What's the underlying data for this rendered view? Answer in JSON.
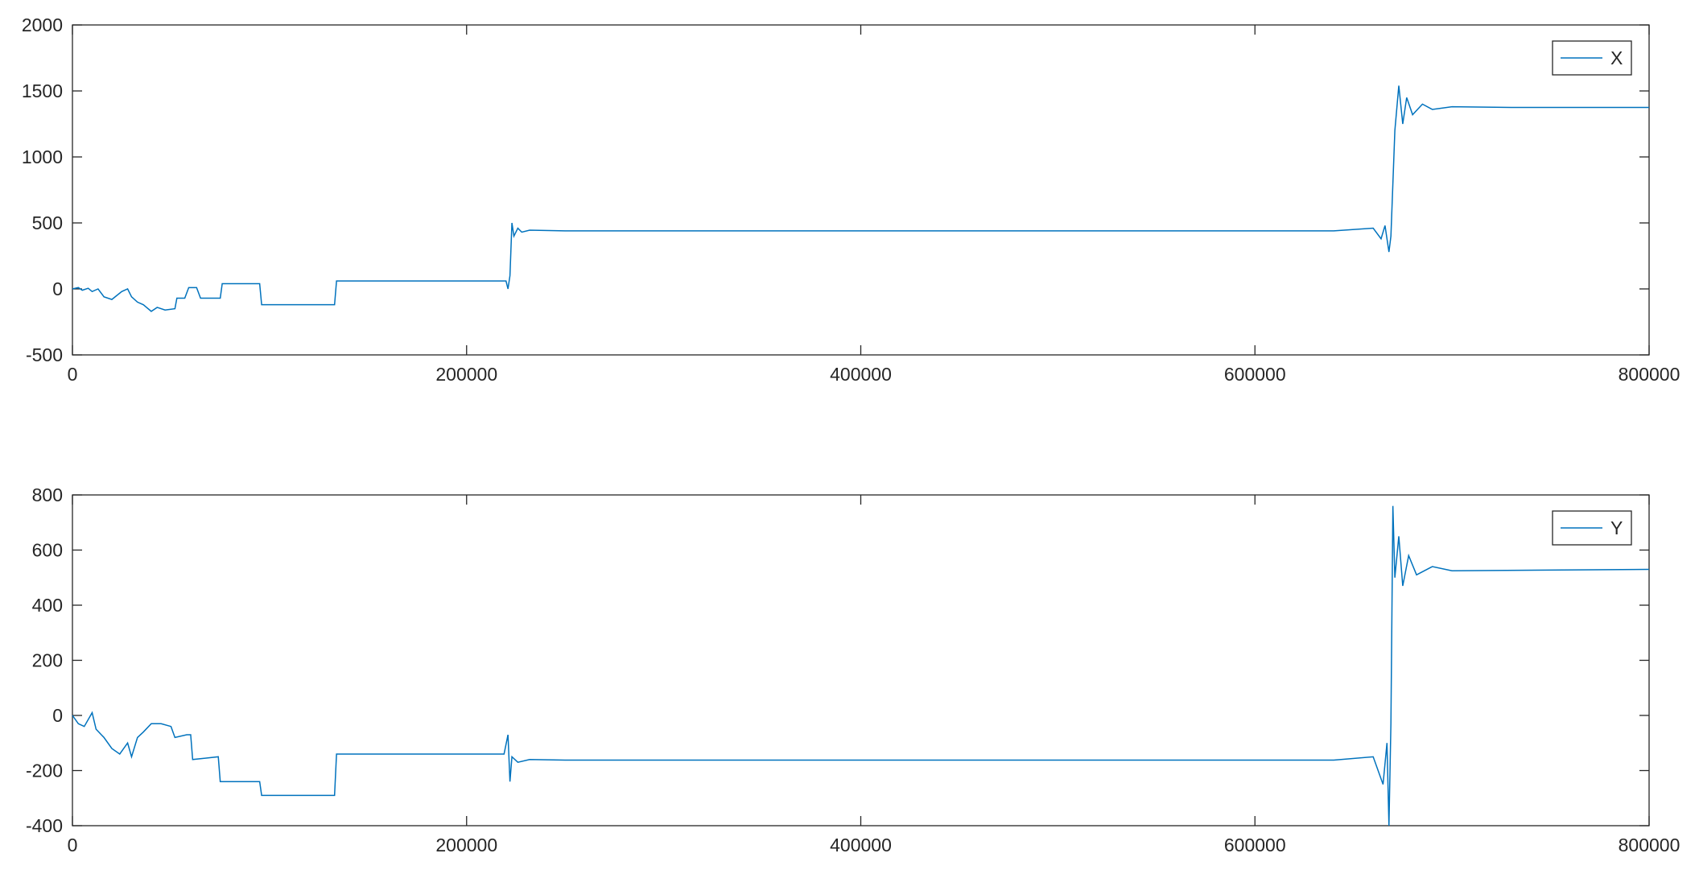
{
  "chart_data": [
    {
      "type": "line",
      "x": [
        0,
        3000,
        5000,
        8000,
        10000,
        13000,
        16000,
        20000,
        25000,
        28000,
        30000,
        33000,
        36000,
        40000,
        43000,
        47000,
        52000,
        53000,
        57000,
        59000,
        63000,
        65000,
        75000,
        76000,
        95000,
        96000,
        133000,
        134000,
        220000,
        221000,
        222000,
        223000,
        224000,
        226000,
        228000,
        232000,
        250000,
        640000,
        660000,
        664000,
        666000,
        668000,
        669000,
        671000,
        673000,
        675000,
        677000,
        680000,
        685000,
        690000,
        700000,
        730000,
        800000
      ],
      "series": [
        {
          "name": "X",
          "color": "#0072bd",
          "values": [
            0,
            10,
            -10,
            5,
            -20,
            0,
            -60,
            -80,
            -20,
            0,
            -60,
            -100,
            -120,
            -170,
            -140,
            -160,
            -150,
            -70,
            -70,
            10,
            10,
            -70,
            -70,
            40,
            40,
            -120,
            -120,
            60,
            60,
            0,
            100,
            500,
            400,
            460,
            430,
            445,
            440,
            440,
            460,
            380,
            480,
            280,
            400,
            1200,
            1540,
            1250,
            1450,
            1320,
            1400,
            1360,
            1380,
            1375,
            1375
          ]
        }
      ],
      "xlim": [
        0,
        800000
      ],
      "ylim": [
        -500,
        2000
      ],
      "xticks": [
        0,
        200000,
        400000,
        600000,
        800000
      ],
      "yticks": [
        -500,
        0,
        500,
        1000,
        1500,
        2000
      ],
      "legend": "upper right"
    },
    {
      "type": "line",
      "x": [
        0,
        3000,
        6000,
        10000,
        12000,
        16000,
        20000,
        24000,
        28000,
        30000,
        33000,
        36000,
        40000,
        45000,
        50000,
        52000,
        58000,
        60000,
        61000,
        74000,
        75000,
        95000,
        96000,
        133000,
        134000,
        219000,
        221000,
        222000,
        223000,
        226000,
        232000,
        250000,
        640000,
        660000,
        665000,
        667000,
        668000,
        669000,
        670000,
        671000,
        673000,
        675000,
        678000,
        682000,
        690000,
        700000,
        800000
      ],
      "series": [
        {
          "name": "Y",
          "color": "#0072bd",
          "values": [
            0,
            -30,
            -40,
            10,
            -50,
            -80,
            -120,
            -140,
            -100,
            -150,
            -80,
            -60,
            -30,
            -30,
            -40,
            -80,
            -70,
            -70,
            -160,
            -150,
            -240,
            -240,
            -290,
            -290,
            -140,
            -140,
            -70,
            -240,
            -150,
            -170,
            -160,
            -162,
            -162,
            -150,
            -250,
            -100,
            -400,
            -30,
            760,
            500,
            650,
            470,
            580,
            510,
            540,
            525,
            530
          ]
        }
      ],
      "xlim": [
        0,
        800000
      ],
      "ylim": [
        -400,
        800
      ],
      "xticks": [
        0,
        200000,
        400000,
        600000,
        800000
      ],
      "yticks": [
        -400,
        -200,
        0,
        200,
        400,
        600,
        800
      ],
      "legend": "upper right"
    }
  ]
}
